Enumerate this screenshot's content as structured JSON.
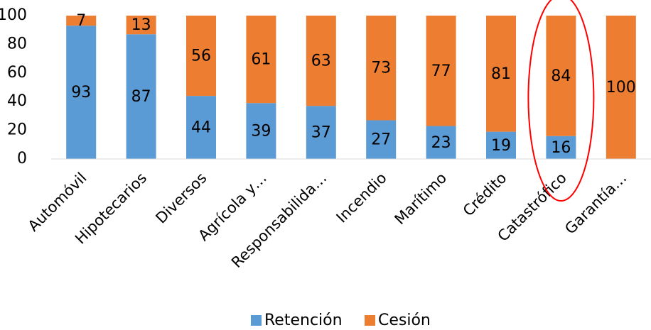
{
  "chart_data": {
    "type": "bar",
    "stacked": true,
    "categories": [
      "Automóvil",
      "Hipotecarios",
      "Diversos",
      "Agrícola y…",
      "Responsabilida…",
      "Incendio",
      "Marítimo",
      "Crédito",
      "Catastrófico",
      "Garantía…"
    ],
    "series": [
      {
        "name": "Retención",
        "values": [
          93,
          87,
          44,
          39,
          37,
          27,
          23,
          19,
          16,
          0
        ],
        "color": "#5B9BD5"
      },
      {
        "name": "Cesión",
        "values": [
          7,
          13,
          56,
          61,
          63,
          73,
          77,
          81,
          84,
          100
        ],
        "color": "#ED7D31"
      }
    ],
    "title": "",
    "xlabel": "",
    "ylabel": "",
    "ylim": [
      0,
      100
    ],
    "yticks": [
      0,
      20,
      40,
      60,
      80,
      100
    ],
    "grid": false,
    "legend_position": "bottom",
    "highlight": {
      "category": "Catastrófico",
      "shape": "ellipse",
      "color": "#FF0000"
    }
  }
}
